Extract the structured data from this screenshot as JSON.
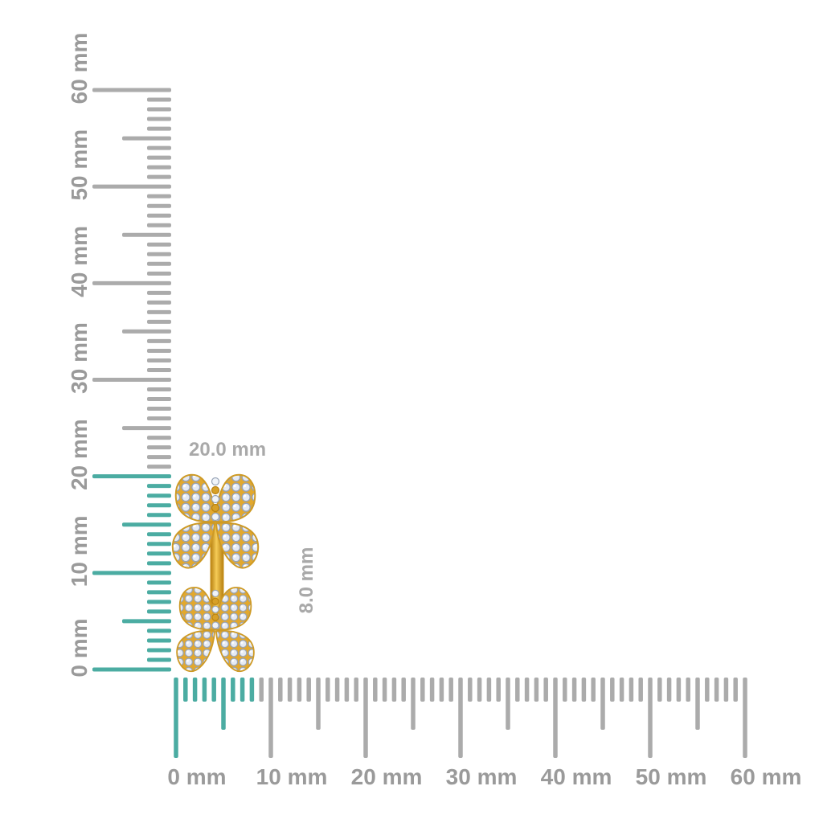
{
  "figure": {
    "description": "gold-and-diamond double leaf jewellery item shown against millimetre rulers"
  },
  "rulers": {
    "vertical": {
      "unit": "mm",
      "min_mm": 0,
      "max_mm": 60,
      "major_step_mm": 10,
      "labels": [
        "0 mm",
        "10 mm",
        "20 mm",
        "30 mm",
        "40 mm",
        "50 mm",
        "60 mm"
      ],
      "highlight_from_mm": 0,
      "highlight_to_mm": 20
    },
    "horizontal": {
      "unit": "mm",
      "min_mm": 0,
      "max_mm": 60,
      "major_step_mm": 10,
      "labels": [
        "0 mm",
        "10 mm",
        "20 mm",
        "30 mm",
        "40 mm",
        "50 mm",
        "60 mm"
      ],
      "highlight_from_mm": 0,
      "highlight_to_mm": 8
    }
  },
  "annotations": {
    "height_label": "20.0 mm",
    "width_label": "8.0 mm"
  },
  "colors": {
    "background": "#ffffff",
    "tick_gray": "#ababab",
    "label_gray": "#9a9a9a",
    "annotation_gray": "#a9a9a9",
    "highlight_teal": "#4baca2",
    "gold": "#e2a82e",
    "gold_dark": "#c8921b",
    "gold_highlight": "#f5cb57",
    "diamond_white": "#e6ebf4",
    "diamond_edge": "#96a2b5"
  }
}
